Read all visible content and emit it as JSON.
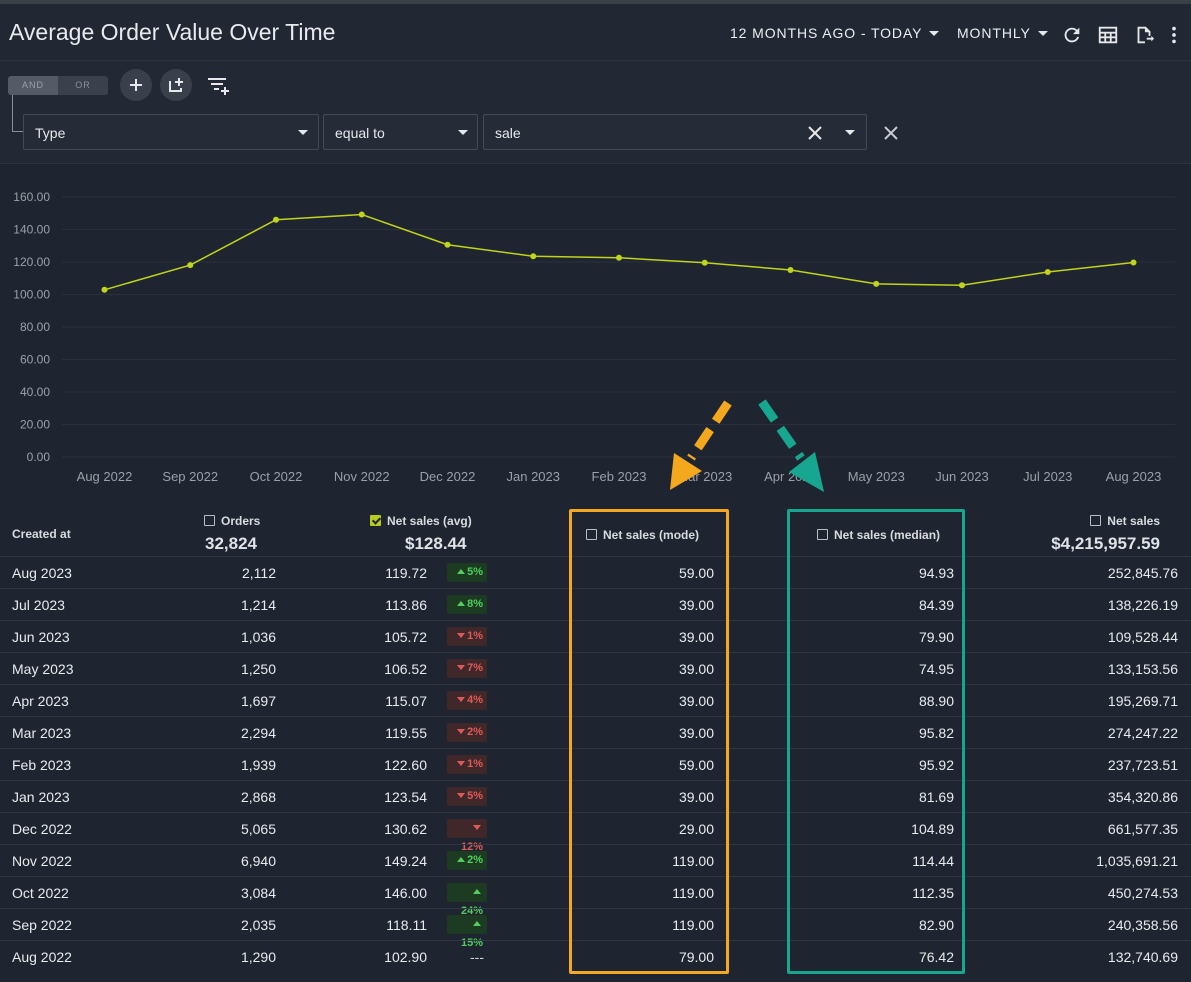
{
  "header": {
    "title": "Average Order Value Over Time",
    "date_range": "12 MONTHS AGO - TODAY",
    "granularity": "MONTHLY",
    "icons": [
      "refresh-icon",
      "table-view-icon",
      "export-icon",
      "more-vertical-icon"
    ]
  },
  "filter": {
    "and_label": "AND",
    "or_label": "OR",
    "active_logic": "AND",
    "field": "Type",
    "operator": "equal to",
    "value": "sale"
  },
  "colors": {
    "line": "#c1d41b",
    "mode_highlight": "#f4a81d",
    "median_highlight": "#17a68f",
    "up": "#4fcf5a",
    "down": "#e05b56"
  },
  "chart_data": {
    "type": "line",
    "categories": [
      "Aug 2022",
      "Sep 2022",
      "Oct 2022",
      "Nov 2022",
      "Dec 2022",
      "Jan 2023",
      "Feb 2023",
      "Mar 2023",
      "Apr 2023",
      "May 2023",
      "Jun 2023",
      "Jul 2023",
      "Aug 2023"
    ],
    "series": [
      {
        "values": [
          102.9,
          118.11,
          146.0,
          149.24,
          130.62,
          123.54,
          122.6,
          119.55,
          115.07,
          106.52,
          105.72,
          113.86,
          119.72
        ]
      }
    ],
    "y_ticks": [
      "160.00",
      "140.00",
      "120.00",
      "100.00",
      "80.00",
      "60.00",
      "40.00",
      "20.00",
      "0.00"
    ],
    "ylim": [
      0,
      160
    ],
    "grid": true,
    "title": "",
    "xlabel": "",
    "ylabel": ""
  },
  "table": {
    "columns": {
      "created_at": "Created at",
      "orders": "Orders",
      "avg": "Net sales (avg)",
      "mode": "Net sales (mode)",
      "median": "Net sales (median)",
      "net": "Net sales"
    },
    "totals": {
      "orders": "32,824",
      "avg": "$128.44",
      "net": "$4,215,957.59"
    },
    "rows": [
      {
        "date": "Aug 2023",
        "orders": "2,112",
        "avg": "119.72",
        "change": "5%",
        "dir": "up",
        "mode": "59.00",
        "median": "94.93",
        "net": "252,845.76"
      },
      {
        "date": "Jul 2023",
        "orders": "1,214",
        "avg": "113.86",
        "change": "8%",
        "dir": "up",
        "mode": "39.00",
        "median": "84.39",
        "net": "138,226.19"
      },
      {
        "date": "Jun 2023",
        "orders": "1,036",
        "avg": "105.72",
        "change": "1%",
        "dir": "down",
        "mode": "39.00",
        "median": "79.90",
        "net": "109,528.44"
      },
      {
        "date": "May 2023",
        "orders": "1,250",
        "avg": "106.52",
        "change": "7%",
        "dir": "down",
        "mode": "39.00",
        "median": "74.95",
        "net": "133,153.56"
      },
      {
        "date": "Apr 2023",
        "orders": "1,697",
        "avg": "115.07",
        "change": "4%",
        "dir": "down",
        "mode": "39.00",
        "median": "88.90",
        "net": "195,269.71"
      },
      {
        "date": "Mar 2023",
        "orders": "2,294",
        "avg": "119.55",
        "change": "2%",
        "dir": "down",
        "mode": "39.00",
        "median": "95.82",
        "net": "274,247.22"
      },
      {
        "date": "Feb 2023",
        "orders": "1,939",
        "avg": "122.60",
        "change": "1%",
        "dir": "down",
        "mode": "59.00",
        "median": "95.92",
        "net": "237,723.51"
      },
      {
        "date": "Jan 2023",
        "orders": "2,868",
        "avg": "123.54",
        "change": "5%",
        "dir": "down",
        "mode": "39.00",
        "median": "81.69",
        "net": "354,320.86"
      },
      {
        "date": "Dec 2022",
        "orders": "5,065",
        "avg": "130.62",
        "change": "12%",
        "dir": "down",
        "mode": "29.00",
        "median": "104.89",
        "net": "661,577.35"
      },
      {
        "date": "Nov 2022",
        "orders": "6,940",
        "avg": "149.24",
        "change": "2%",
        "dir": "up",
        "mode": "119.00",
        "median": "114.44",
        "net": "1,035,691.21"
      },
      {
        "date": "Oct 2022",
        "orders": "3,084",
        "avg": "146.00",
        "change": "24%",
        "dir": "up",
        "mode": "119.00",
        "median": "112.35",
        "net": "450,274.53"
      },
      {
        "date": "Sep 2022",
        "orders": "2,035",
        "avg": "118.11",
        "change": "15%",
        "dir": "up",
        "mode": "119.00",
        "median": "82.90",
        "net": "240,358.56"
      },
      {
        "date": "Aug 2022",
        "orders": "1,290",
        "avg": "102.90",
        "change": "---",
        "dir": "none",
        "mode": "79.00",
        "median": "76.42",
        "net": "132,740.69"
      }
    ]
  }
}
